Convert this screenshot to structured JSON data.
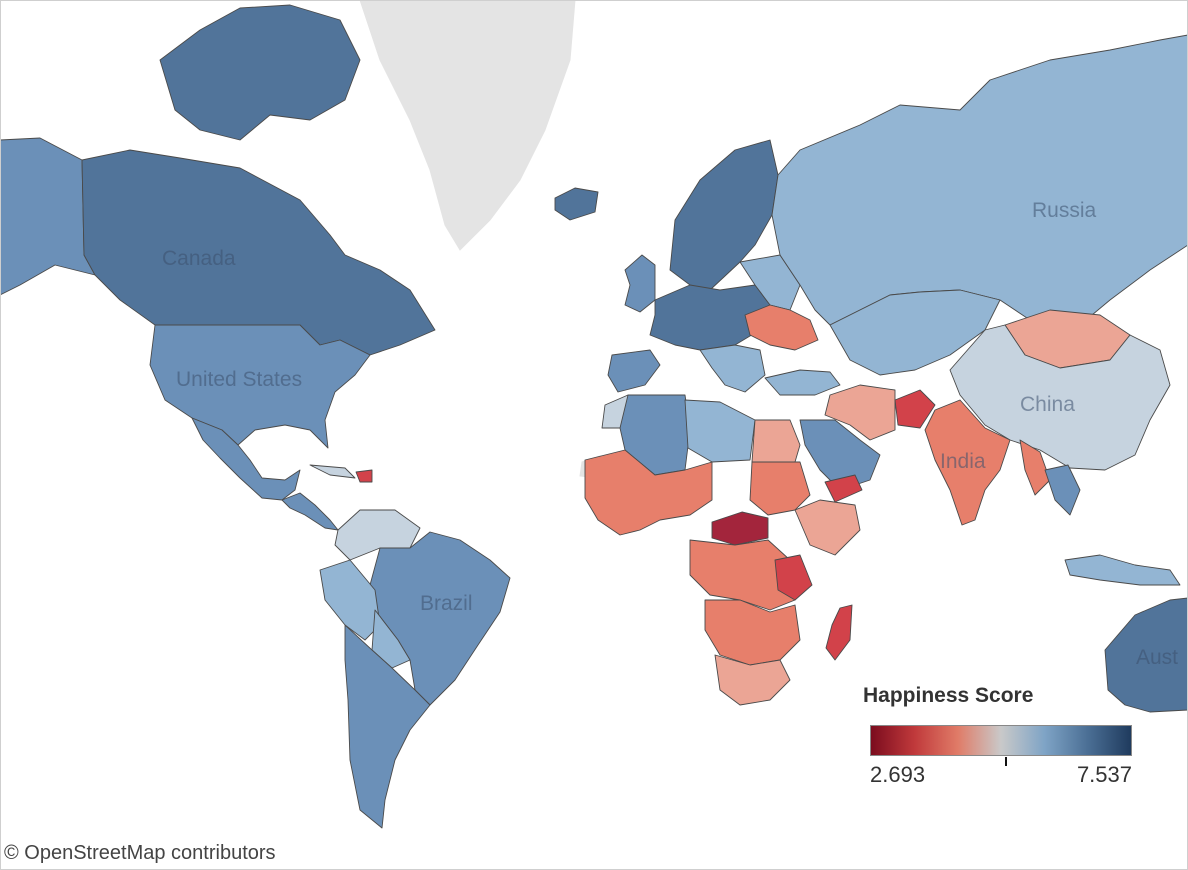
{
  "map": {
    "labels": {
      "canada": "Canada",
      "united_states": "United States",
      "brazil": "Brazil",
      "russia": "Russia",
      "china": "China",
      "india": "India",
      "australia": "Aust"
    }
  },
  "legend": {
    "title": "Happiness Score",
    "min": "2.693",
    "max": "7.537",
    "tick_value": 5.2,
    "colors": [
      "#7b0c1e",
      "#c0393b",
      "#e07b67",
      "#c9c9c9",
      "#7fa4c6",
      "#4b6f95",
      "#1f3b5e"
    ]
  },
  "attribution": "© OpenStreetMap contributors",
  "colors": {
    "very_high": "#51749a",
    "high": "#6b90b8",
    "mid_high": "#93b5d3",
    "neutral": "#c6d3df",
    "mid_low": "#eba595",
    "low": "#e77f6b",
    "very_low": "#d2424a",
    "lowest": "#a3253c",
    "nodata": "#e4e4e4"
  }
}
